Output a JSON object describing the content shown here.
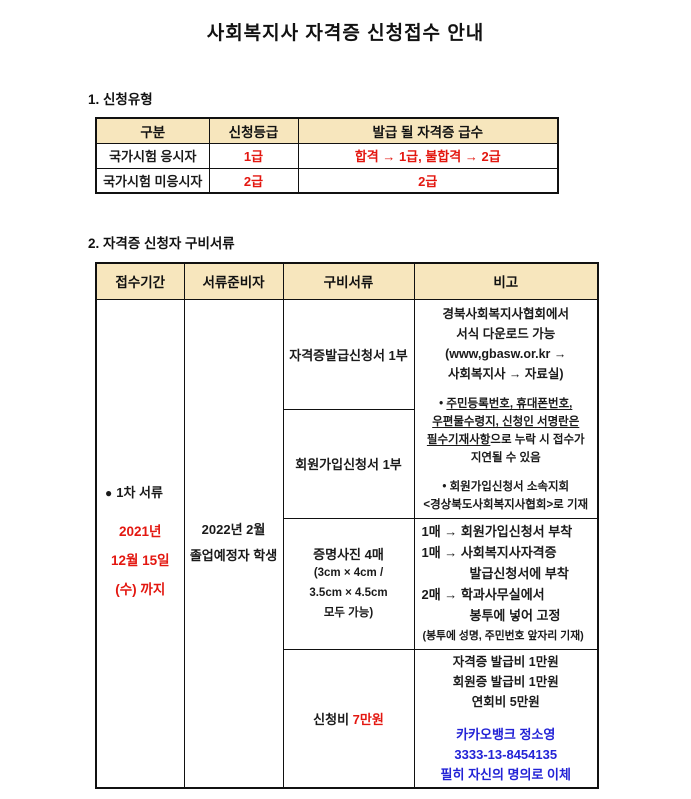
{
  "page": {
    "title": "사회복지사 자격증 신청접수 안내"
  },
  "colors": {
    "red": "#e31710",
    "blue": "#2222d6",
    "table_header_bg": "#f7e6bd"
  },
  "section1": {
    "heading": "1. 신청유형",
    "table": {
      "headers": [
        "구분",
        "신청등급",
        "발급 될 자격증 급수"
      ],
      "rows": [
        {
          "category": "국가시험 응시자",
          "grade": "1급",
          "issued": "합격 → 1급, 불합격 → 2급"
        },
        {
          "category": "국가시험 미응시자",
          "grade": "2급",
          "issued": "2급"
        }
      ]
    }
  },
  "section2": {
    "heading": "2. 자격증 신청자 구비서류",
    "table": {
      "headers": [
        "접수기간",
        "서류준비자",
        "구비서류",
        "비고"
      ],
      "period": {
        "bullet": "●",
        "label": "1차 서류",
        "deadline_lines": [
          "2021년",
          "12월 15일",
          "(수) 까지"
        ]
      },
      "preparer_lines": [
        "2022년 2월",
        "졸업예정자 학생"
      ],
      "docs": {
        "doc1": "자격증발급신청서 1부",
        "doc2": "회원가입신청서 1부",
        "doc3_title": "증명사진 4매",
        "doc3_lines": [
          "(3cm × 4cm /",
          "3.5cm × 4.5cm",
          "모두 가능)"
        ],
        "doc4_label": "신청비",
        "doc4_fee": "7만원"
      },
      "note1": {
        "download_lines": [
          "경북사회복지사협회에서",
          "서식 다운로드 가능",
          "(www,gbasw.or.kr →",
          "사회복지사 → 자료실)"
        ],
        "req_bullet": "• ",
        "req_l1_underlined": "주민등록번호, 휴대폰번호,",
        "req_l2_underlined": "우편물수령지, 신청인 서명란은",
        "req_l3_underlined": "필수기재사항",
        "req_l3_rest": "으로 누락 시 접수가",
        "req_l4": "지연될 수 있음",
        "member_l1": "• 회원가입신청서 소속지회",
        "member_l2": "<경상북도사회복지사협회>로 기재"
      },
      "note2_lines": [
        "1매 → 회원가입신청서 부착",
        "1매 → 사회복지사자격증",
        "발급신청서에 부착",
        "2매 → 학과사무실에서",
        "봉투에 넣어 고정",
        "(봉투에 성명, 주민번호 앞자리 기재)"
      ],
      "note3": {
        "fee_lines": [
          "자격증 발급비 1만원",
          "회원증 발급비 1만원",
          "연회비 5만원"
        ],
        "bank_lines": [
          "카카오뱅크 정소영",
          "3333-13-8454135",
          "필히 자신의 명의로 이체"
        ]
      }
    }
  }
}
